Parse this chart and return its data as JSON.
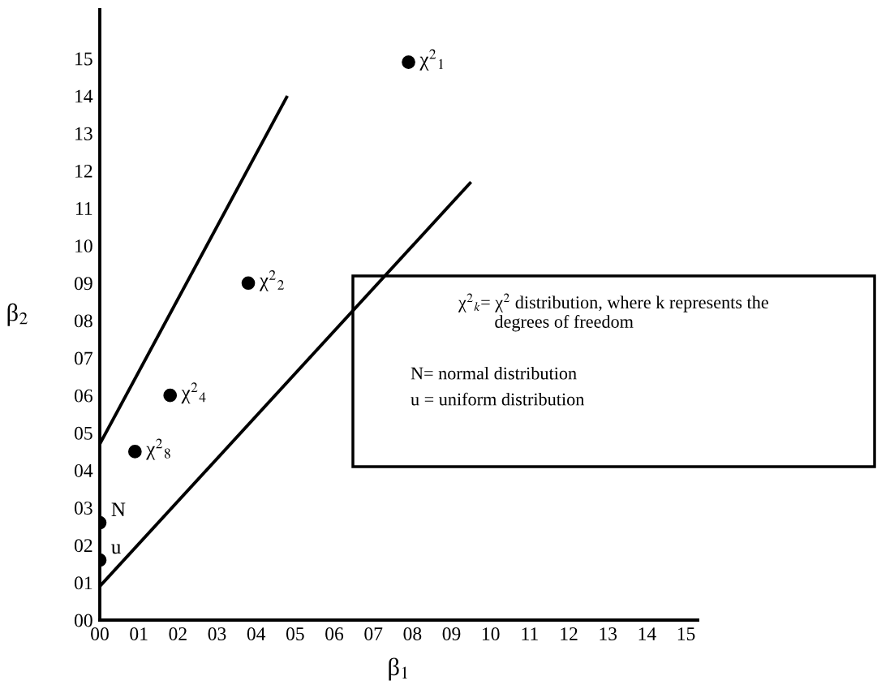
{
  "chart_data": {
    "type": "scatter",
    "xlabel": "β$_{1}$",
    "ylabel": "β$_{2}$",
    "xlim": [
      0,
      15.3
    ],
    "ylim": [
      0,
      16.3
    ],
    "xticks": [
      {
        "value": 0,
        "label": "00"
      },
      {
        "value": 1,
        "label": "01"
      },
      {
        "value": 2,
        "label": "02"
      },
      {
        "value": 3,
        "label": "03"
      },
      {
        "value": 4,
        "label": "04"
      },
      {
        "value": 5,
        "label": "05"
      },
      {
        "value": 6,
        "label": "06"
      },
      {
        "value": 7,
        "label": "07"
      },
      {
        "value": 8,
        "label": "08"
      },
      {
        "value": 9,
        "label": "09"
      },
      {
        "value": 10,
        "label": "10"
      },
      {
        "value": 11,
        "label": "11"
      },
      {
        "value": 12,
        "label": "12"
      },
      {
        "value": 13,
        "label": "13"
      },
      {
        "value": 14,
        "label": "14"
      },
      {
        "value": 15,
        "label": "15"
      }
    ],
    "yticks": [
      {
        "value": 0,
        "label": "00"
      },
      {
        "value": 1,
        "label": "01"
      },
      {
        "value": 2,
        "label": "02"
      },
      {
        "value": 3,
        "label": "03"
      },
      {
        "value": 4,
        "label": "04"
      },
      {
        "value": 5,
        "label": "05"
      },
      {
        "value": 6,
        "label": "06"
      },
      {
        "value": 7,
        "label": "07"
      },
      {
        "value": 8,
        "label": "08"
      },
      {
        "value": 9,
        "label": "09"
      },
      {
        "value": 10,
        "label": "10"
      },
      {
        "value": 11,
        "label": "11"
      },
      {
        "value": 12,
        "label": "12"
      },
      {
        "value": 13,
        "label": "13"
      },
      {
        "value": 14,
        "label": "14"
      },
      {
        "value": 15,
        "label": "15"
      }
    ],
    "grid": false,
    "marker": "circle",
    "series": [
      {
        "color": "#000000",
        "x": [
          7.9,
          3.8,
          1.8,
          0.9,
          0,
          0
        ],
        "values": [
          14.9,
          9.0,
          6.0,
          4.5,
          2.6,
          1.6
        ]
      },
      {
        "type": "line",
        "color": "#000000",
        "marker": "none",
        "line_style": "solid",
        "x": [
          0,
          4.8
        ],
        "values": [
          4.7,
          14.0
        ]
      },
      {
        "type": "line",
        "color": "#000000",
        "marker": "none",
        "line_style": "solid",
        "x": [
          0,
          9.5
        ],
        "values": [
          0.9,
          11.7
        ]
      }
    ],
    "annotations": [
      {
        "text": "χ$^{2}$$_{1}$",
        "x": 7.9,
        "y": 14.9
      },
      {
        "text": "χ$^{2}$$_{2}$",
        "x": 3.8,
        "y": 9.0
      },
      {
        "text": "χ$^{2}$$_{4}$",
        "x": 1.8,
        "y": 6.0
      },
      {
        "text": "χ$^{2}$$_{8}$",
        "x": 0.9,
        "y": 4.5
      },
      {
        "text": "N",
        "x": 0,
        "y": 2.6
      },
      {
        "text": "u",
        "x": 0,
        "y": 1.6
      },
      "χ$^{2}$$_{k}$= χ$^{2}$ distribution, where k represents the\n        degrees of freedom",
      "N= normal distribution",
      "u = uniform distribution"
    ]
  }
}
